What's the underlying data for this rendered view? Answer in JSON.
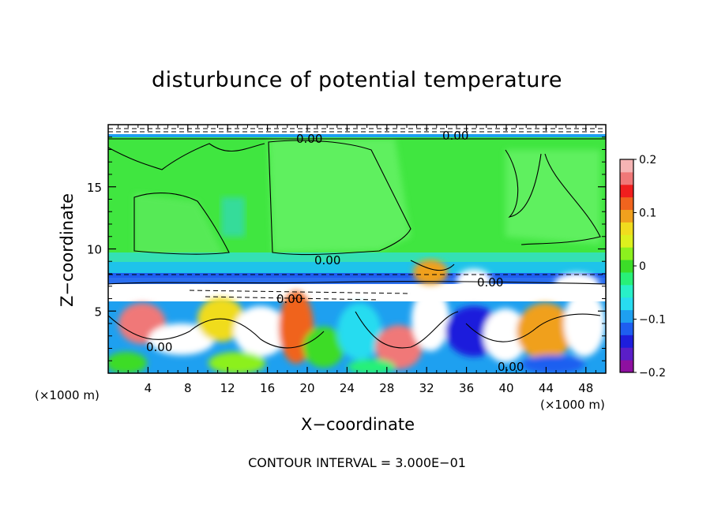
{
  "chart_data": {
    "type": "heatmap",
    "title": "disturbunce of potential temperature",
    "xlabel": "X−coordinate",
    "ylabel": "Z−coordinate",
    "x_unit_left": "(×1000 m)",
    "x_unit_right": "(×1000 m)",
    "footnote": "CONTOUR INTERVAL = 3.000E−01",
    "xlim": [
      0,
      50
    ],
    "ylim": [
      0,
      20
    ],
    "x_ticks": [
      4,
      8,
      12,
      16,
      20,
      24,
      28,
      32,
      36,
      40,
      44,
      48
    ],
    "y_ticks": [
      5,
      10,
      15
    ],
    "colorbar": {
      "range": [
        -0.2,
        0.2
      ],
      "tick_values": [
        0.2,
        0.1,
        0,
        -0.1,
        -0.2
      ],
      "tick_labels": [
        "0.2",
        "0.1",
        "0",
        "−0.1",
        "−0.2"
      ],
      "colors": [
        "#8e10a0",
        "#5a1ec8",
        "#1e1edc",
        "#1e5ef0",
        "#1ea0f0",
        "#28dcf0",
        "#28f0c8",
        "#28f078",
        "#3cdc28",
        "#8cf01e",
        "#dcf01e",
        "#f0dc1e",
        "#f0a01e",
        "#f0641e",
        "#f01e1e",
        "#f07878",
        "#f5b4b4"
      ]
    },
    "contour_label": "0.00",
    "contour_interval": 0.3
  },
  "colors": {
    "background": "#00ee00",
    "upper_green": "#2fe32f",
    "band_cyan": "#1ac8e8",
    "band_blue": "#1d4bdc"
  }
}
